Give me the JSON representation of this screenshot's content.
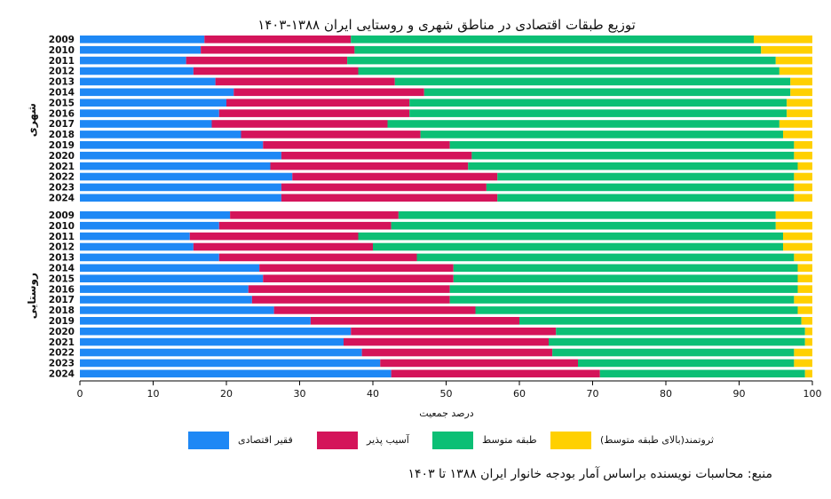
{
  "source_note": "منبع: محاسبات نویسنده براساس آمار بودجه خانوار ایران ۱۳۸۸ تا ۱۴۰۳",
  "chart_data": {
    "type": "bar",
    "orientation": "horizontal",
    "stacked": true,
    "title": "توزیع طبقات اقتصادی در مناطق شهری و روستایی ایران ۱۳۸۸-۱۴۰۳",
    "xlabel": "درصد جمعیت",
    "xlim": [
      0,
      100
    ],
    "xticks": [
      0,
      10,
      20,
      30,
      40,
      50,
      60,
      70,
      80,
      90,
      100
    ],
    "grid": false,
    "legend_position": "bottom",
    "series": [
      {
        "name": "فقیر اقتصادی",
        "color": "#1e88f5"
      },
      {
        "name": "آسیب پذیر",
        "color": "#d4145a"
      },
      {
        "name": "طبقه متوسط",
        "color": "#0cbf75"
      },
      {
        "name": "ثروتمند(بالای طبقه متوسط)",
        "color": "#ffd000"
      }
    ],
    "groups": [
      {
        "label": "شهری",
        "categories": [
          "2009",
          "2010",
          "2011",
          "2012",
          "2013",
          "2014",
          "2015",
          "2016",
          "2017",
          "2018",
          "2019",
          "2020",
          "2021",
          "2022",
          "2023",
          "2024"
        ],
        "values": [
          [
            17.0,
            20.0,
            55.0,
            8.0
          ],
          [
            16.5,
            21.0,
            55.5,
            7.0
          ],
          [
            14.5,
            22.0,
            58.5,
            5.0
          ],
          [
            15.5,
            22.5,
            57.5,
            4.5
          ],
          [
            18.5,
            24.5,
            54.0,
            3.0
          ],
          [
            21.0,
            26.0,
            50.0,
            3.0
          ],
          [
            20.0,
            25.0,
            51.5,
            3.5
          ],
          [
            19.0,
            26.0,
            51.5,
            3.5
          ],
          [
            18.0,
            24.0,
            53.5,
            4.5
          ],
          [
            22.0,
            24.5,
            49.5,
            4.0
          ],
          [
            25.0,
            25.5,
            47.0,
            2.5
          ],
          [
            27.5,
            26.0,
            44.0,
            2.5
          ],
          [
            26.0,
            27.0,
            45.0,
            2.0
          ],
          [
            29.0,
            28.0,
            40.5,
            2.5
          ],
          [
            27.5,
            28.0,
            42.0,
            2.5
          ],
          [
            27.5,
            29.5,
            40.5,
            2.5
          ]
        ]
      },
      {
        "label": "روستایی",
        "categories": [
          "2009",
          "2010",
          "2011",
          "2012",
          "2013",
          "2014",
          "2015",
          "2016",
          "2017",
          "2018",
          "2019",
          "2020",
          "2021",
          "2022",
          "2023",
          "2024"
        ],
        "values": [
          [
            20.5,
            23.0,
            51.5,
            5.0
          ],
          [
            19.0,
            23.5,
            52.5,
            5.0
          ],
          [
            15.0,
            23.0,
            58.0,
            4.0
          ],
          [
            15.5,
            24.5,
            56.0,
            4.0
          ],
          [
            19.0,
            27.0,
            51.5,
            2.5
          ],
          [
            24.5,
            26.5,
            47.0,
            2.0
          ],
          [
            25.0,
            26.0,
            47.0,
            2.0
          ],
          [
            23.0,
            27.5,
            47.5,
            2.0
          ],
          [
            23.5,
            27.0,
            47.0,
            2.5
          ],
          [
            26.5,
            27.5,
            44.0,
            2.0
          ],
          [
            31.5,
            28.5,
            38.5,
            1.5
          ],
          [
            37.0,
            28.0,
            34.0,
            1.0
          ],
          [
            36.0,
            28.0,
            35.0,
            1.0
          ],
          [
            38.5,
            26.0,
            33.0,
            2.5
          ],
          [
            41.0,
            27.0,
            29.5,
            2.5
          ],
          [
            42.5,
            28.5,
            28.0,
            1.0
          ]
        ]
      }
    ]
  }
}
